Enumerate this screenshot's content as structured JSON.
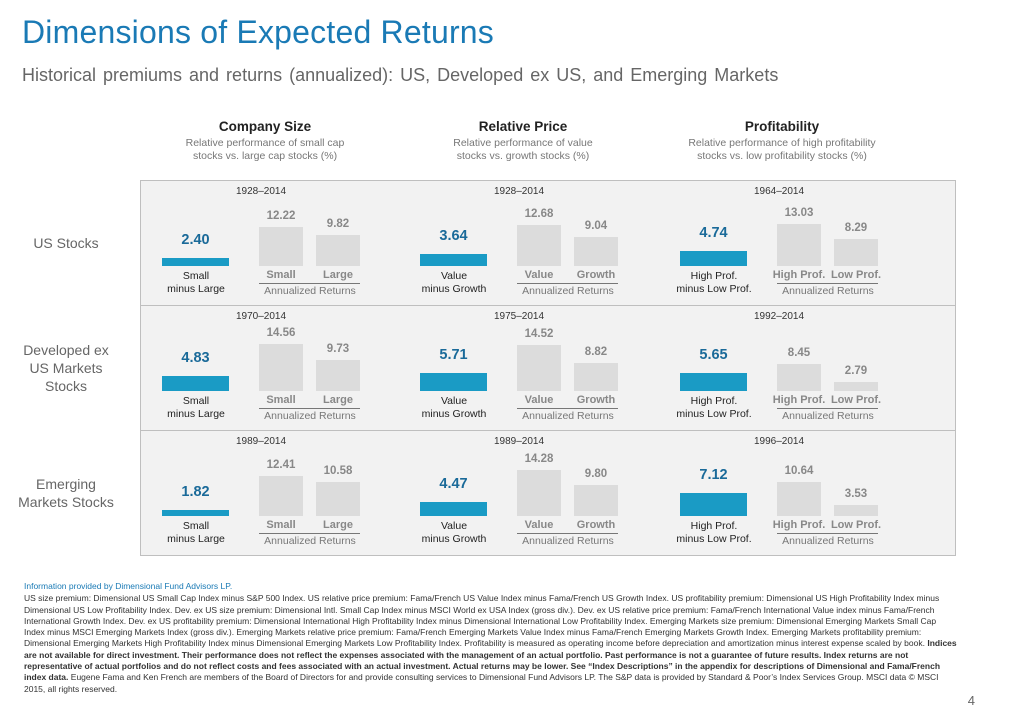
{
  "title": "Dimensions of Expected Returns",
  "subtitle": "Historical premiums and returns (annualized): US, Developed ex US, and Emerging Markets",
  "columns": [
    {
      "name": "Company Size",
      "desc_line1": "Relative performance of small cap",
      "desc_line2": "stocks vs. large cap stocks (%)"
    },
    {
      "name": "Relative Price",
      "desc_line1": "Relative performance of value",
      "desc_line2": "stocks vs. growth stocks (%)"
    },
    {
      "name": "Profitability",
      "desc_line1": "Relative performance of high profitability",
      "desc_line2": "stocks vs. low profitability stocks (%)"
    }
  ],
  "rows": [
    {
      "label_line1": "US Stocks",
      "label_line2": "",
      "label_line3": ""
    },
    {
      "label_line1": "Developed ex",
      "label_line2": "US Markets",
      "label_line3": "Stocks"
    },
    {
      "label_line1": "Emerging",
      "label_line2": "Markets Stocks",
      "label_line3": ""
    }
  ],
  "annualized_label": "Annualized Returns",
  "chart_data": [
    {
      "type": "bar",
      "row": "US Stocks",
      "column": "Company Size",
      "period": "1928–2014",
      "premium_label_line1": "Small",
      "premium_label_line2": "minus Large",
      "premium": 2.4,
      "premium_text": "2.40",
      "categories": [
        "Small",
        "Large"
      ],
      "values": [
        12.22,
        9.82
      ],
      "value_texts": [
        "12.22",
        "9.82"
      ]
    },
    {
      "type": "bar",
      "row": "US Stocks",
      "column": "Relative Price",
      "period": "1928–2014",
      "premium_label_line1": "Value",
      "premium_label_line2": "minus Growth",
      "premium": 3.64,
      "premium_text": "3.64",
      "categories": [
        "Value",
        "Growth"
      ],
      "values": [
        12.68,
        9.04
      ],
      "value_texts": [
        "12.68",
        "9.04"
      ]
    },
    {
      "type": "bar",
      "row": "US Stocks",
      "column": "Profitability",
      "period": "1964–2014",
      "premium_label_line1": "High Prof.",
      "premium_label_line2": "minus Low Prof.",
      "premium": 4.74,
      "premium_text": "4.74",
      "categories": [
        "High Prof.",
        "Low Prof."
      ],
      "values": [
        13.03,
        8.29
      ],
      "value_texts": [
        "13.03",
        "8.29"
      ]
    },
    {
      "type": "bar",
      "row": "Developed ex US Markets Stocks",
      "column": "Company Size",
      "period": "1970–2014",
      "premium_label_line1": "Small",
      "premium_label_line2": "minus Large",
      "premium": 4.83,
      "premium_text": "4.83",
      "categories": [
        "Small",
        "Large"
      ],
      "values": [
        14.56,
        9.73
      ],
      "value_texts": [
        "14.56",
        "9.73"
      ]
    },
    {
      "type": "bar",
      "row": "Developed ex US Markets Stocks",
      "column": "Relative Price",
      "period": "1975–2014",
      "premium_label_line1": "Value",
      "premium_label_line2": "minus Growth",
      "premium": 5.71,
      "premium_text": "5.71",
      "categories": [
        "Value",
        "Growth"
      ],
      "values": [
        14.52,
        8.82
      ],
      "value_texts": [
        "14.52",
        "8.82"
      ]
    },
    {
      "type": "bar",
      "row": "Developed ex US Markets Stocks",
      "column": "Profitability",
      "period": "1992–2014",
      "premium_label_line1": "High Prof.",
      "premium_label_line2": "minus Low Prof.",
      "premium": 5.65,
      "premium_text": "5.65",
      "categories": [
        "High Prof.",
        "Low Prof."
      ],
      "values": [
        8.45,
        2.79
      ],
      "value_texts": [
        "8.45",
        "2.79"
      ]
    },
    {
      "type": "bar",
      "row": "Emerging Markets Stocks",
      "column": "Company Size",
      "period": "1989–2014",
      "premium_label_line1": "Small",
      "premium_label_line2": "minus Large",
      "premium": 1.82,
      "premium_text": "1.82",
      "categories": [
        "Small",
        "Large"
      ],
      "values": [
        12.41,
        10.58
      ],
      "value_texts": [
        "12.41",
        "10.58"
      ]
    },
    {
      "type": "bar",
      "row": "Emerging Markets Stocks",
      "column": "Relative Price",
      "period": "1989–2014",
      "premium_label_line1": "Value",
      "premium_label_line2": "minus Growth",
      "premium": 4.47,
      "premium_text": "4.47",
      "categories": [
        "Value",
        "Growth"
      ],
      "values": [
        14.28,
        9.8
      ],
      "value_texts": [
        "14.28",
        "9.80"
      ]
    },
    {
      "type": "bar",
      "row": "Emerging Markets Stocks",
      "column": "Profitability",
      "period": "1996–2014",
      "premium_label_line1": "High Prof.",
      "premium_label_line2": "minus Low Prof.",
      "premium": 7.12,
      "premium_text": "7.12",
      "categories": [
        "High Prof.",
        "Low Prof."
      ],
      "values": [
        10.64,
        3.53
      ],
      "value_texts": [
        "10.64",
        "3.53"
      ]
    }
  ],
  "footer": {
    "source": "Information provided by Dimensional Fund Advisors LP.",
    "text": "US size premium: Dimensional US Small Cap Index minus S&P 500 Index. US relative price premium: Fama/French US Value Index minus Fama/French US Growth Index. US profitability premium: Dimensional US High Profitability Index minus Dimensional US Low Profitability Index. Dev. ex US size premium: Dimensional Intl. Small Cap Index minus MSCI World ex USA Index (gross div.). Dev. ex US relative price premium: Fama/French International Value index minus Fama/French International Growth Index. Dev. ex US profitability premium: Dimensional International High Profitability Index minus Dimensional International Low Profitability Index. Emerging Markets size premium: Dimensional Emerging Markets Small Cap Index minus MSCI Emerging Markets Index (gross div.). Emerging Markets relative price premium: Fama/French Emerging Markets Value Index minus Fama/French Emerging Markets Growth Index. Emerging Markets profitability premium: Dimensional Emerging Markets High Profitability Index minus Dimensional Emerging Markets Low Profitability Index. Profitability is measured as operating income before depreciation and amortization minus interest expense scaled by book.",
    "bold_text": "Indices are not available for direct investment. Their performance does not reflect the expenses associated with the management of an actual portfolio. Past performance is not a guarantee of future results. Index returns are not representative of actual portfolios and do not reflect costs and fees associated with an actual investment. Actual returns may be lower. See “Index Descriptions” in the appendix for descriptions of Dimensional and Fama/French index data.",
    "tail_text": "Eugene Fama and Ken French are members of the Board of Directors for and provide consulting services to Dimensional Fund Advisors LP. The S&P data is provided by Standard & Poor’s Index Services Group. MSCI data © MSCI 2015, all rights reserved."
  },
  "page_number": "4",
  "colors": {
    "title": "#1a7ab5",
    "premium_bar": "#1a9bc5",
    "return_bar": "#dcdcdc",
    "panel_bg": "#f2f2f2"
  }
}
